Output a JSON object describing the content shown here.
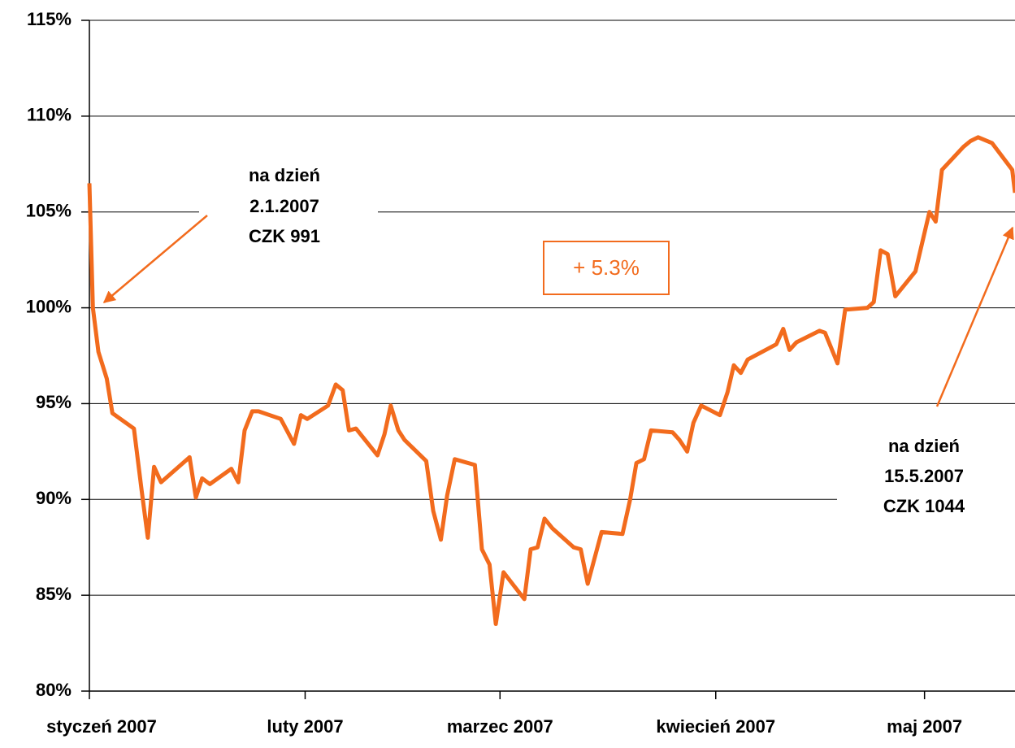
{
  "chart_data": {
    "type": "line",
    "x": [
      1,
      1.5,
      2.3,
      3.5,
      4.3,
      7.4,
      8.5,
      9.4,
      10.3,
      11.3,
      15.4,
      16.3,
      17.2,
      18.3,
      21.4,
      22.4,
      23.3,
      24.4,
      25.3,
      28.5,
      30.4,
      31.4,
      32.3,
      35.3,
      36.4,
      37.4,
      38.3,
      39.3,
      42.4,
      43.4,
      44.3,
      45.4,
      46.3,
      49.4,
      50.4,
      51.5,
      52.4,
      53.5,
      56.4,
      57.4,
      58.5,
      59.4,
      60.5,
      63.5,
      64.4,
      65.4,
      66.4,
      67.5,
      70.6,
      71.6,
      72.6,
      74.6,
      77.6,
      78.7,
      79.6,
      80.7,
      81.7,
      84.8,
      85.8,
      86.9,
      87.8,
      88.9,
      91.6,
      92.7,
      93.6,
      94.6,
      95.6,
      99.7,
      100.7,
      101.6,
      102.6,
      105.9,
      106.7,
      108.5,
      109.6,
      112.8,
      113.7,
      114.7,
      115.7,
      116.8,
      119.7,
      121.7,
      122.6,
      123.5,
      126.6,
      127.6,
      128.7,
      130.7,
      133.6,
      134
    ],
    "values": [
      106.5,
      100.0,
      97.7,
      96.3,
      94.5,
      93.7,
      90.5,
      88.0,
      91.7,
      90.9,
      92.2,
      90.1,
      91.1,
      90.8,
      91.6,
      90.9,
      93.6,
      94.6,
      94.6,
      94.2,
      92.9,
      94.4,
      94.2,
      94.9,
      96.0,
      95.7,
      93.6,
      93.7,
      92.3,
      93.4,
      94.9,
      93.6,
      93.1,
      92.0,
      89.4,
      87.9,
      90.2,
      92.1,
      91.8,
      87.4,
      86.6,
      83.5,
      86.2,
      84.8,
      87.4,
      87.5,
      89.0,
      88.5,
      87.5,
      87.4,
      85.6,
      88.3,
      88.2,
      90.0,
      91.9,
      92.1,
      93.6,
      93.5,
      93.1,
      92.5,
      94.0,
      94.9,
      94.4,
      95.6,
      97.0,
      96.6,
      97.3,
      98.1,
      98.9,
      97.8,
      98.2,
      98.8,
      98.7,
      97.1,
      99.9,
      100.0,
      100.3,
      103.0,
      102.8,
      100.6,
      101.9,
      105.0,
      104.5,
      107.2,
      108.4,
      108.7,
      108.9,
      108.6,
      107.2,
      106.0
    ],
    "color": "#f26b1d",
    "xlim": [
      1,
      134
    ],
    "xticks": [
      {
        "value": 1,
        "label": "styczeń 2007"
      },
      {
        "value": 32,
        "label": "luty 2007"
      },
      {
        "value": 60,
        "label": "marzec 2007"
      },
      {
        "value": 91,
        "label": "kwiecień 2007"
      },
      {
        "value": 121,
        "label": "maj 2007"
      }
    ],
    "ylim": [
      80,
      115
    ],
    "yticks": [
      {
        "value": 80,
        "label": "80%"
      },
      {
        "value": 85,
        "label": "85%"
      },
      {
        "value": 90,
        "label": "90%"
      },
      {
        "value": 95,
        "label": "95%"
      },
      {
        "value": 100,
        "label": "100%"
      },
      {
        "value": 105,
        "label": "105%"
      },
      {
        "value": 110,
        "label": "110%"
      },
      {
        "value": 115,
        "label": "115%"
      }
    ],
    "grid": true,
    "annotations": [
      {
        "lines": [
          "na dzień",
          "2.1.2007",
          "CZK 991"
        ]
      },
      {
        "text": "+ 5.3%"
      },
      {
        "lines": [
          "na dzień",
          "15.5.2007",
          "CZK 1044"
        ]
      }
    ]
  }
}
